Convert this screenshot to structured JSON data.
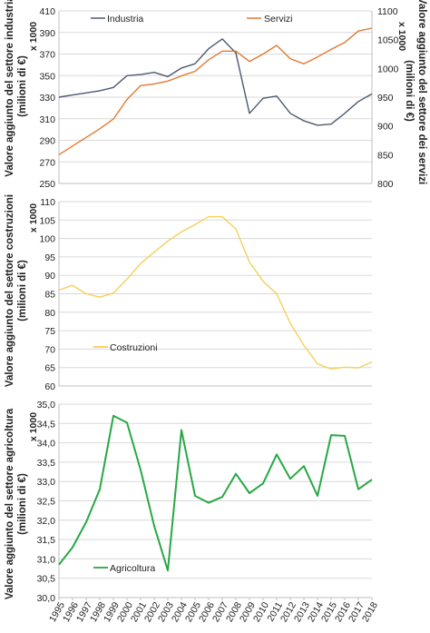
{
  "chart_data": [
    {
      "type": "line",
      "x": [
        1995,
        1996,
        1997,
        1998,
        1999,
        2000,
        2001,
        2002,
        2003,
        2004,
        2005,
        2006,
        2007,
        2008,
        2009,
        2010,
        2011,
        2012,
        2013,
        2014,
        2015,
        2016,
        2017,
        2018
      ],
      "series": [
        {
          "name": "Industria",
          "axis": "left",
          "color": "#4d5a6e",
          "values": [
            330,
            332,
            334,
            336,
            339,
            350,
            351,
            353,
            349,
            357,
            361,
            375,
            384,
            371,
            315,
            329,
            331,
            315,
            308,
            304,
            305,
            315,
            326,
            333
          ]
        },
        {
          "name": "Servizi",
          "axis": "right",
          "color": "#e07b30",
          "values": [
            850,
            865,
            880,
            895,
            912,
            946,
            970,
            973,
            978,
            987,
            995,
            1015,
            1030,
            1030,
            1012,
            1025,
            1040,
            1017,
            1008,
            1020,
            1033,
            1045,
            1065,
            1070
          ]
        }
      ],
      "ylabel_left": "Valore aggiunto del settore industria\n(milioni di €)",
      "ylabel_right": "Valore aggiunto del settore dei servizi\n(milioni di €)",
      "multiplier_left": "x 1000",
      "multiplier_right": "x 1000",
      "ylim_left": [
        250,
        410
      ],
      "yticks_left": [
        250,
        270,
        290,
        310,
        330,
        350,
        370,
        390,
        410
      ],
      "ylim_right": [
        800,
        1100
      ],
      "yticks_right": [
        800,
        850,
        900,
        950,
        1000,
        1050,
        1100
      ],
      "legend_placement": "top",
      "grid": true
    },
    {
      "type": "line",
      "x": [
        1995,
        1996,
        1997,
        1998,
        1999,
        2000,
        2001,
        2002,
        2003,
        2004,
        2005,
        2006,
        2007,
        2008,
        2009,
        2010,
        2011,
        2012,
        2013,
        2014,
        2015,
        2016,
        2017,
        2018
      ],
      "series": [
        {
          "name": "Costruzioni",
          "color": "#f5cf5a",
          "values": [
            86,
            87.3,
            85,
            84.1,
            85.2,
            89,
            93.2,
            96.3,
            99.3,
            101.8,
            103.8,
            105.9,
            105.9,
            102.6,
            93.6,
            88.4,
            85,
            77,
            71,
            66,
            64.6,
            65.1,
            64.9,
            66.5
          ]
        }
      ],
      "ylabel": "Valore aggiunto del settore costruzioni\n(milioni di €)",
      "multiplier": "x 1000",
      "ylim": [
        60,
        110
      ],
      "yticks": [
        60,
        65,
        70,
        75,
        80,
        85,
        90,
        95,
        100,
        105,
        110
      ],
      "legend_placement": "lower-left",
      "grid": true
    },
    {
      "type": "line",
      "x": [
        1995,
        1996,
        1997,
        1998,
        1999,
        2000,
        2001,
        2002,
        2003,
        2004,
        2005,
        2006,
        2007,
        2008,
        2009,
        2010,
        2011,
        2012,
        2013,
        2014,
        2015,
        2016,
        2017,
        2018
      ],
      "xticks": [
        "1995",
        "1996",
        "1997",
        "1998",
        "1999",
        "2000",
        "2001",
        "2002",
        "2003",
        "2004",
        "2005",
        "2006",
        "2007",
        "2008",
        "2009",
        "2010",
        "2011",
        "2012",
        "2013",
        "2014",
        "2015",
        "2016",
        "2017",
        "2018"
      ],
      "series": [
        {
          "name": "Agricoltura",
          "color": "#27a844",
          "values": [
            30.85,
            31.3,
            31.95,
            32.8,
            34.7,
            34.52,
            33.3,
            31.85,
            30.7,
            34.33,
            32.63,
            32.45,
            32.6,
            33.2,
            32.7,
            32.95,
            33.7,
            33.07,
            33.4,
            32.63,
            34.2,
            34.18,
            32.8,
            33.05
          ]
        }
      ],
      "ylabel": "Valore aggiunto del settore agricoltura\n(milioni di €)",
      "multiplier": "x 1000",
      "ylim": [
        30.0,
        35.0
      ],
      "yticks": [
        "30,0",
        "30,5",
        "31,0",
        "31,5",
        "32,0",
        "32,5",
        "33,0",
        "33,5",
        "34,0",
        "34,5",
        "35,0"
      ],
      "legend_placement": "lower-left",
      "grid": true
    }
  ]
}
